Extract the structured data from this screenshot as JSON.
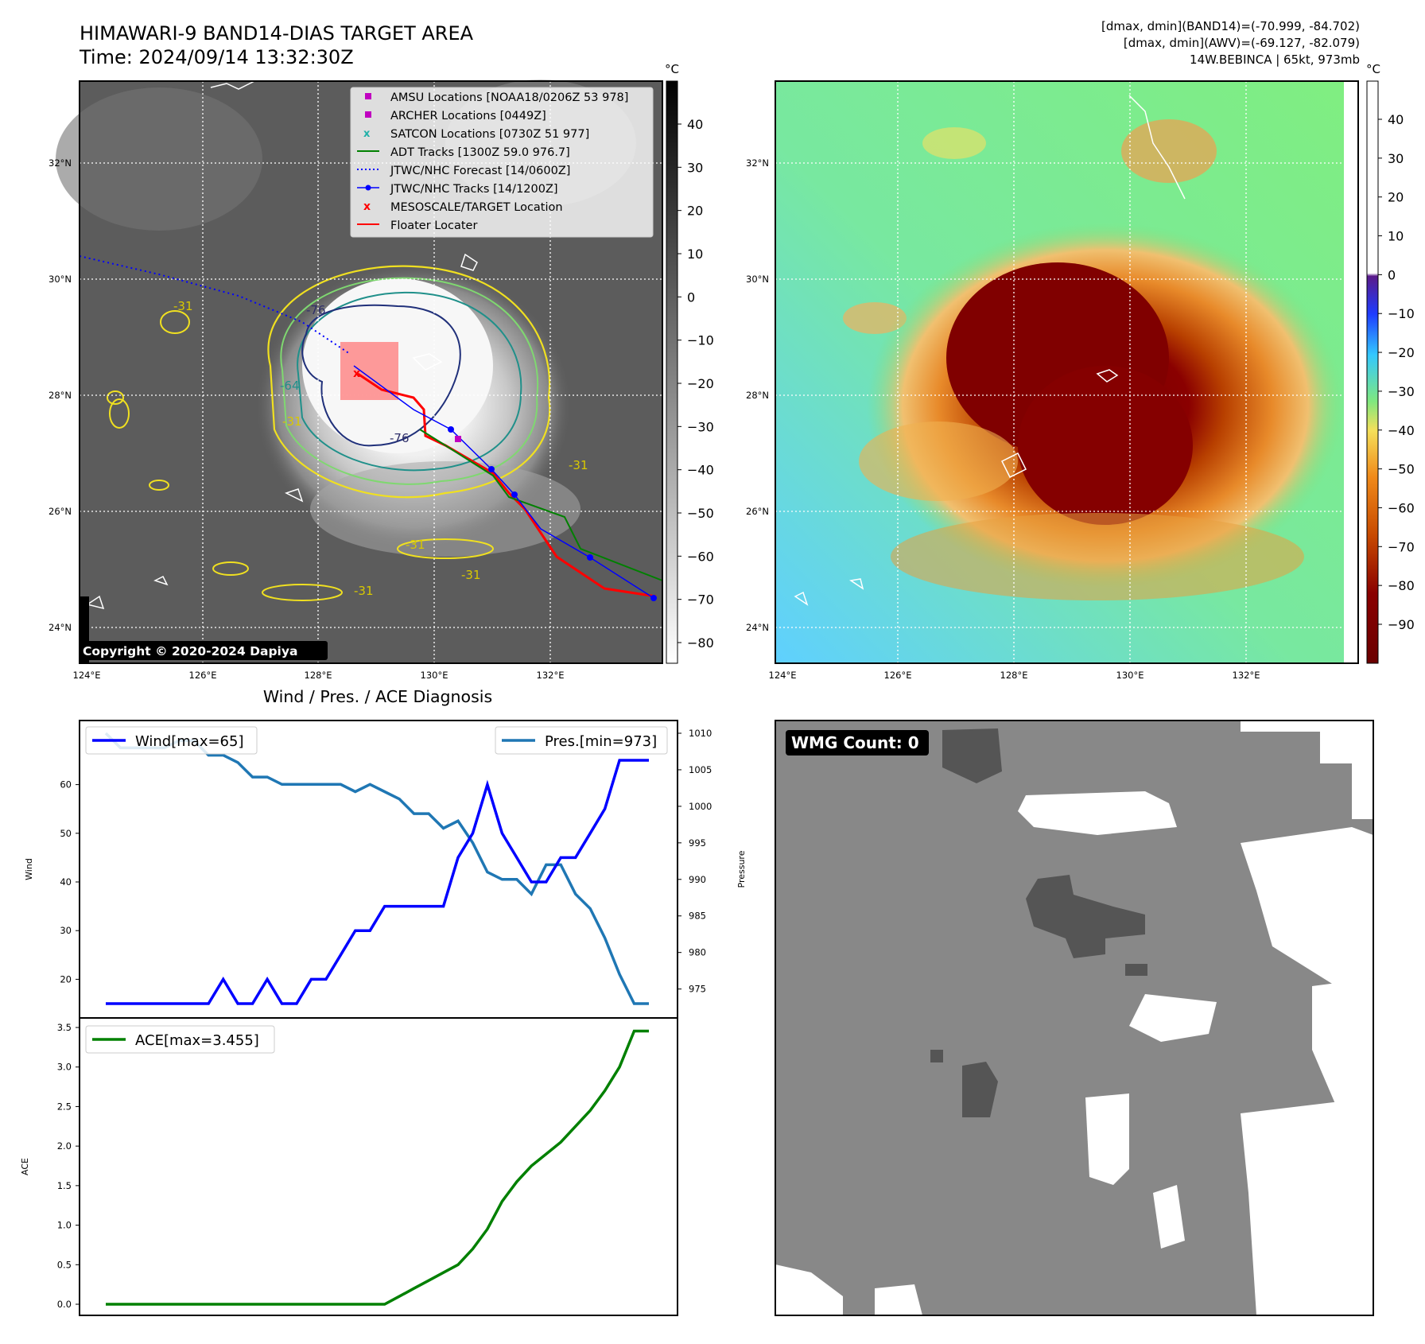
{
  "header": {
    "title": "HIMAWARI-9 BAND14-DIAS TARGET AREA",
    "time": "Time: 2024/09/14 13:32:30Z",
    "right_line1": "[dmax, dmin](BAND14)=(-70.999, -84.702)",
    "right_line2": "[dmax, dmin](AWV)=(-69.127, -82.079)",
    "right_line3": "14W.BEBINCA | 65kt, 973mb"
  },
  "maps": {
    "lat_labels": [
      "32°N",
      "30°N",
      "28°N",
      "26°N",
      "24°N"
    ],
    "lon_labels": [
      "124°E",
      "126°E",
      "128°E",
      "130°E",
      "132°E"
    ],
    "copyright": "Copyright © 2020-2024 Dapiya",
    "contour_labels": [
      "-76",
      "-76",
      "-64",
      "-31",
      "-31",
      "-31",
      "-31",
      "-31",
      "-31"
    ],
    "gray_colorbar": {
      "unit": "°C",
      "ticks": [
        "40",
        "30",
        "20",
        "10",
        "0",
        "−10",
        "−20",
        "−30",
        "−40",
        "−50",
        "−60",
        "−70",
        "−80"
      ]
    },
    "color_colorbar": {
      "unit": "°C",
      "ticks": [
        "40",
        "30",
        "20",
        "10",
        "0",
        "−10",
        "−20",
        "−30",
        "−40",
        "−50",
        "−60",
        "−70",
        "−80",
        "−90"
      ]
    },
    "legend": [
      {
        "label": "AMSU Locations [NOAA18/0206Z 53 978]",
        "color": "#c000c0",
        "icon": "square-marker"
      },
      {
        "label": "ARCHER Locations [0449Z]",
        "color": "#c000c0",
        "icon": "square-marker"
      },
      {
        "label": "SATCON Locations [0730Z 51 977]",
        "color": "#20b0a8",
        "icon": "x-marker"
      },
      {
        "label": "ADT Tracks [1300Z 59.0 976.7]",
        "color": "#008000",
        "icon": "line"
      },
      {
        "label": "JTWC/NHC Forecast [14/0600Z]",
        "color": "#0000ff",
        "icon": "dotted-line"
      },
      {
        "label": "JTWC/NHC Tracks [14/1200Z]",
        "color": "#0000ff",
        "icon": "line-dot"
      },
      {
        "label": "MESOSCALE/TARGET Location",
        "color": "#ff0000",
        "icon": "x-marker"
      },
      {
        "label": "Floater Locater",
        "color": "#ff0000",
        "icon": "line"
      }
    ]
  },
  "diagnosis": {
    "title": "Wind / Pres. / ACE Diagnosis",
    "wind_legend": "Wind[max=65]",
    "pres_legend": "Pres.[min=973]",
    "ace_legend": "ACE[max=3.455]",
    "ylabel_wind": "Wind",
    "ylabel_pres": "Pressure",
    "ylabel_ace": "ACE",
    "wind_ticks": [
      "60",
      "50",
      "40",
      "30",
      "20"
    ],
    "pres_ticks": [
      "1010",
      "1005",
      "1000",
      "995",
      "990",
      "985",
      "980",
      "975"
    ],
    "ace_ticks": [
      "3.5",
      "3.0",
      "2.5",
      "2.0",
      "1.5",
      "1.0",
      "0.5",
      "0.0"
    ]
  },
  "wmg": {
    "badge": "WMG Count: 0"
  },
  "chart_data": [
    {
      "type": "line",
      "title": "Wind / Pres. / ACE Diagnosis",
      "x": [
        0,
        1,
        2,
        3,
        4,
        5,
        6,
        7,
        8,
        9,
        10,
        11,
        12,
        13,
        14,
        15,
        16,
        17,
        18,
        19,
        20,
        21,
        22,
        23,
        24,
        25,
        26,
        27,
        28,
        29,
        30,
        31,
        32,
        33,
        34,
        35,
        36,
        37
      ],
      "series": [
        {
          "name": "Wind[max=65]",
          "color": "#0000ff",
          "axis": "left",
          "values": [
            15,
            15,
            15,
            15,
            15,
            15,
            15,
            15,
            20,
            15,
            15,
            20,
            15,
            15,
            20,
            20,
            25,
            30,
            30,
            35,
            35,
            35,
            35,
            35,
            45,
            50,
            60,
            50,
            45,
            40,
            40,
            45,
            45,
            50,
            55,
            65,
            65,
            65
          ]
        },
        {
          "name": "Pres.[min=973]",
          "color": "#1f77b4",
          "axis": "right",
          "values": [
            1010,
            1008,
            1008,
            1008,
            1008,
            1009,
            1009,
            1007,
            1007,
            1006,
            1004,
            1004,
            1003,
            1003,
            1003,
            1003,
            1003,
            1002,
            1003,
            1002,
            1001,
            999,
            999,
            997,
            998,
            995,
            991,
            990,
            990,
            988,
            992,
            992,
            988,
            986,
            982,
            977,
            973,
            973
          ]
        }
      ],
      "ylim_left": [
        15,
        67
      ],
      "ylim_right": [
        973,
        1010
      ],
      "ylabel": "Wind",
      "y2label": "Pressure"
    },
    {
      "type": "line",
      "series": [
        {
          "name": "ACE[max=3.455]",
          "color": "#008000",
          "values": [
            0,
            0,
            0,
            0,
            0,
            0,
            0,
            0,
            0,
            0,
            0,
            0,
            0,
            0,
            0,
            0,
            0,
            0,
            0,
            0,
            0.1,
            0.2,
            0.3,
            0.4,
            0.5,
            0.7,
            0.95,
            1.3,
            1.55,
            1.75,
            1.9,
            2.05,
            2.25,
            2.45,
            2.7,
            3.0,
            3.455,
            3.455
          ]
        }
      ],
      "ylim": [
        0,
        3.5
      ],
      "ylabel": "ACE"
    }
  ]
}
